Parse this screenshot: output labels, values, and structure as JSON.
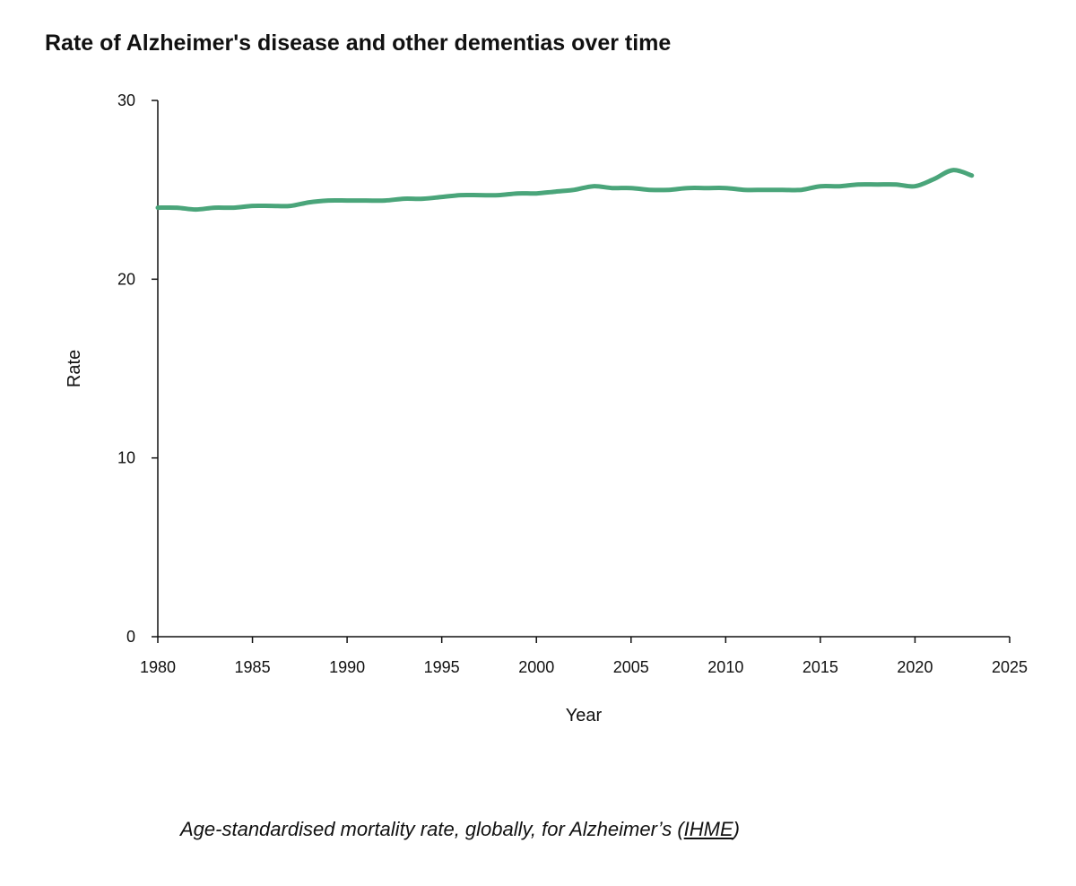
{
  "chart_data": {
    "type": "line",
    "title": "Rate of Alzheimer's disease and other dementias over time",
    "xlabel": "Year",
    "ylabel": "Rate",
    "xlim": [
      1980,
      2025
    ],
    "ylim": [
      0,
      30
    ],
    "x_ticks": [
      "1980",
      "1985",
      "1990",
      "1995",
      "2000",
      "2005",
      "2010",
      "2015",
      "2020",
      "2025"
    ],
    "y_ticks": [
      "0",
      "10",
      "20",
      "30"
    ],
    "grid": false,
    "line_color": "#4aa57a",
    "x": [
      1980,
      1981,
      1982,
      1983,
      1984,
      1985,
      1986,
      1987,
      1988,
      1989,
      1990,
      1991,
      1992,
      1993,
      1994,
      1995,
      1996,
      1997,
      1998,
      1999,
      2000,
      2001,
      2002,
      2003,
      2004,
      2005,
      2006,
      2007,
      2008,
      2009,
      2010,
      2011,
      2012,
      2013,
      2014,
      2015,
      2016,
      2017,
      2018,
      2019,
      2020,
      2021,
      2022,
      2023
    ],
    "y": [
      24.0,
      24.0,
      23.9,
      24.0,
      24.0,
      24.1,
      24.1,
      24.1,
      24.3,
      24.4,
      24.4,
      24.4,
      24.4,
      24.5,
      24.5,
      24.6,
      24.7,
      24.7,
      24.7,
      24.8,
      24.8,
      24.9,
      25.0,
      25.2,
      25.1,
      25.1,
      25.0,
      25.0,
      25.1,
      25.1,
      25.1,
      25.0,
      25.0,
      25.0,
      25.0,
      25.2,
      25.2,
      25.3,
      25.3,
      25.3,
      25.2,
      25.6,
      26.1,
      25.8
    ]
  },
  "caption": {
    "text": "Age-standardised mortality rate, globally, for Alzheimer’s (",
    "link": "IHME",
    "close": ")"
  }
}
